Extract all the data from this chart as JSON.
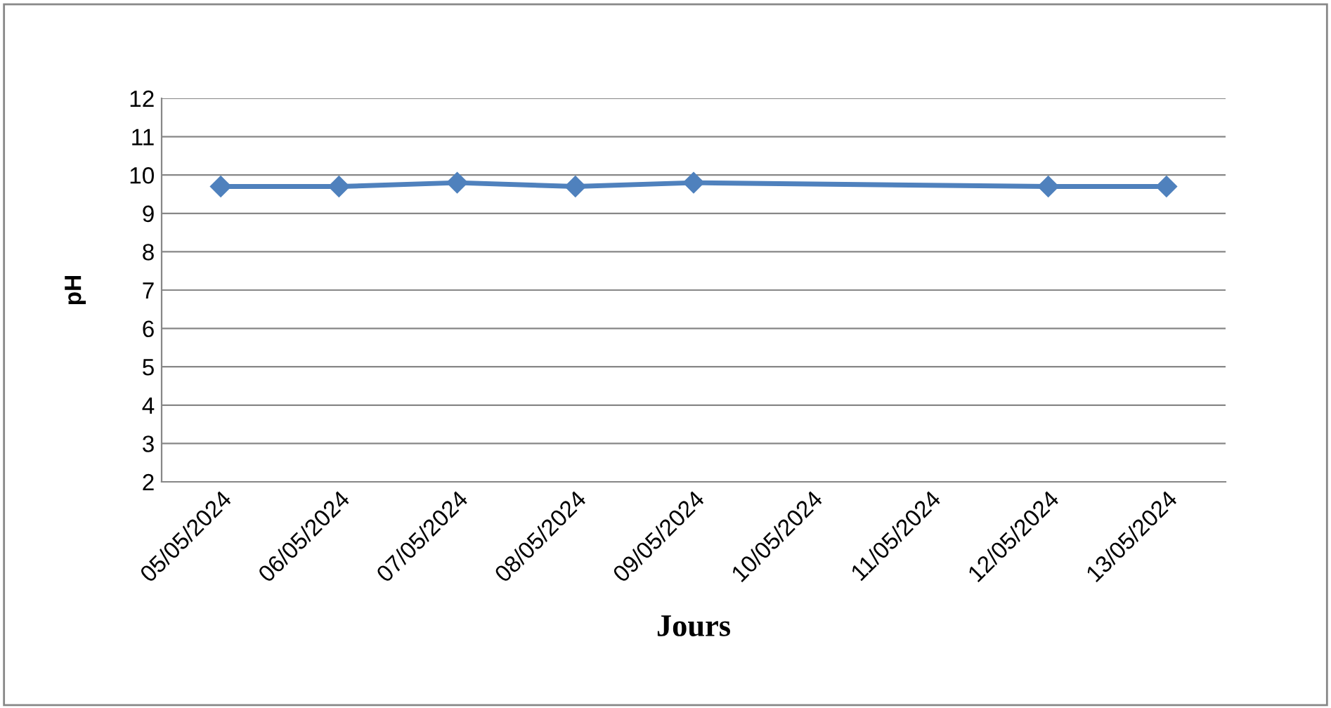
{
  "chart_data": {
    "type": "line",
    "xlabel": "Jours",
    "ylabel": "pH",
    "categories": [
      "05/05/2024",
      "06/05/2024",
      "07/05/2024",
      "08/05/2024",
      "09/05/2024",
      "10/05/2024",
      "11/05/2024",
      "12/05/2024",
      "13/05/2024"
    ],
    "series": [
      {
        "color": "#4f81bd",
        "values": [
          9.7,
          9.7,
          9.8,
          9.7,
          9.8,
          null,
          null,
          9.7,
          9.7
        ]
      }
    ],
    "ylim": [
      2,
      12
    ],
    "yticks": [
      2,
      3,
      4,
      5,
      6,
      7,
      8,
      9,
      10,
      11,
      12
    ],
    "grid": "y",
    "marker": "diamond",
    "line_style": "solid"
  }
}
